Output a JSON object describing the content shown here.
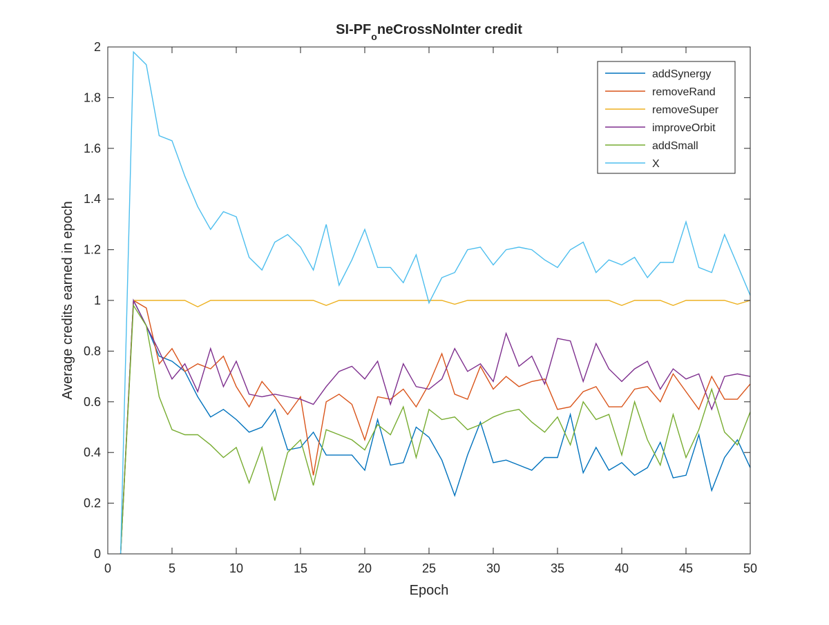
{
  "chart_data": {
    "type": "line",
    "title_main": "SI-PF",
    "title_sub": "o",
    "title_rest": "neCrossNoInter credit",
    "xlabel": "Epoch",
    "ylabel": "Average credits earned in epoch",
    "xlim": [
      0,
      50
    ],
    "ylim": [
      0,
      2
    ],
    "xticks": [
      0,
      5,
      10,
      15,
      20,
      25,
      30,
      35,
      40,
      45,
      50
    ],
    "yticks": [
      0,
      0.2,
      0.4,
      0.6,
      0.8,
      1,
      1.2,
      1.4,
      1.6,
      1.8,
      2
    ],
    "xtick_labels": [
      "0",
      "5",
      "10",
      "15",
      "20",
      "25",
      "30",
      "35",
      "40",
      "45",
      "50"
    ],
    "ytick_labels": [
      "0",
      "0.2",
      "0.4",
      "0.6",
      "0.8",
      "1",
      "1.2",
      "1.4",
      "1.6",
      "1.8",
      "2"
    ],
    "grid": false,
    "legend_position": "top-right",
    "x": [
      1,
      2,
      3,
      4,
      5,
      6,
      7,
      8,
      9,
      10,
      11,
      12,
      13,
      14,
      15,
      16,
      17,
      18,
      19,
      20,
      21,
      22,
      23,
      24,
      25,
      26,
      27,
      28,
      29,
      30,
      31,
      32,
      33,
      34,
      35,
      36,
      37,
      38,
      39,
      40,
      41,
      42,
      43,
      44,
      45,
      46,
      47,
      48,
      49,
      50
    ],
    "series": [
      {
        "name": "addSynergy",
        "color": "#0072BD",
        "values": [
          0,
          1.0,
          0.9,
          0.78,
          0.76,
          0.72,
          0.62,
          0.54,
          0.57,
          0.53,
          0.48,
          0.5,
          0.57,
          0.41,
          0.42,
          0.48,
          0.39,
          0.39,
          0.39,
          0.33,
          0.53,
          0.35,
          0.36,
          0.5,
          0.46,
          0.37,
          0.23,
          0.39,
          0.52,
          0.36,
          0.37,
          0.35,
          0.33,
          0.38,
          0.38,
          0.55,
          0.32,
          0.42,
          0.33,
          0.36,
          0.31,
          0.34,
          0.44,
          0.3,
          0.31,
          0.47,
          0.25,
          0.38,
          0.45,
          0.34
        ]
      },
      {
        "name": "removeRand",
        "color": "#D95319",
        "values": [
          0,
          1.0,
          0.97,
          0.75,
          0.81,
          0.72,
          0.75,
          0.73,
          0.78,
          0.66,
          0.58,
          0.68,
          0.62,
          0.55,
          0.62,
          0.31,
          0.6,
          0.63,
          0.59,
          0.45,
          0.62,
          0.61,
          0.65,
          0.58,
          0.67,
          0.79,
          0.63,
          0.61,
          0.74,
          0.65,
          0.7,
          0.66,
          0.68,
          0.69,
          0.57,
          0.58,
          0.64,
          0.66,
          0.58,
          0.58,
          0.65,
          0.66,
          0.6,
          0.71,
          0.64,
          0.57,
          0.7,
          0.61,
          0.61,
          0.67
        ]
      },
      {
        "name": "removeSuper",
        "color": "#EDB120",
        "values": [
          0,
          1.0,
          1.0,
          1.0,
          1.0,
          1.0,
          0.975,
          1.0,
          1.0,
          1.0,
          1.0,
          1.0,
          1.0,
          1.0,
          1.0,
          1.0,
          0.98,
          1.0,
          1.0,
          1.0,
          1.0,
          1.0,
          1.0,
          1.0,
          1.0,
          1.0,
          0.985,
          1.0,
          1.0,
          1.0,
          1.0,
          1.0,
          1.0,
          1.0,
          1.0,
          1.0,
          1.0,
          1.0,
          1.0,
          0.98,
          1.0,
          1.0,
          1.0,
          0.98,
          1.0,
          1.0,
          1.0,
          1.0,
          0.985,
          1.0
        ]
      },
      {
        "name": "improveOrbit",
        "color": "#7E2F8E",
        "values": [
          0,
          1.0,
          0.9,
          0.8,
          0.69,
          0.75,
          0.64,
          0.81,
          0.66,
          0.76,
          0.63,
          0.62,
          0.63,
          0.62,
          0.61,
          0.59,
          0.66,
          0.72,
          0.74,
          0.69,
          0.76,
          0.59,
          0.75,
          0.66,
          0.65,
          0.69,
          0.81,
          0.72,
          0.75,
          0.68,
          0.87,
          0.74,
          0.78,
          0.67,
          0.85,
          0.84,
          0.68,
          0.83,
          0.73,
          0.68,
          0.73,
          0.76,
          0.65,
          0.73,
          0.69,
          0.71,
          0.57,
          0.7,
          0.71,
          0.7
        ]
      },
      {
        "name": "addSmall",
        "color": "#77AC30",
        "values": [
          0,
          0.98,
          0.9,
          0.62,
          0.49,
          0.47,
          0.47,
          0.43,
          0.38,
          0.42,
          0.28,
          0.42,
          0.21,
          0.4,
          0.45,
          0.27,
          0.49,
          0.47,
          0.45,
          0.41,
          0.51,
          0.47,
          0.58,
          0.38,
          0.57,
          0.53,
          0.54,
          0.49,
          0.51,
          0.54,
          0.56,
          0.57,
          0.52,
          0.48,
          0.54,
          0.43,
          0.6,
          0.53,
          0.55,
          0.39,
          0.6,
          0.45,
          0.35,
          0.55,
          0.38,
          0.49,
          0.65,
          0.48,
          0.43,
          0.56
        ]
      },
      {
        "name": "X",
        "color": "#4DBEEE",
        "values": [
          0,
          1.98,
          1.93,
          1.65,
          1.63,
          1.49,
          1.37,
          1.28,
          1.35,
          1.33,
          1.17,
          1.12,
          1.23,
          1.26,
          1.21,
          1.12,
          1.3,
          1.06,
          1.16,
          1.28,
          1.13,
          1.13,
          1.07,
          1.18,
          0.99,
          1.09,
          1.11,
          1.2,
          1.21,
          1.14,
          1.2,
          1.21,
          1.2,
          1.16,
          1.13,
          1.2,
          1.23,
          1.11,
          1.16,
          1.14,
          1.17,
          1.09,
          1.15,
          1.15,
          1.31,
          1.13,
          1.11,
          1.26,
          1.14,
          1.02
        ]
      }
    ]
  }
}
